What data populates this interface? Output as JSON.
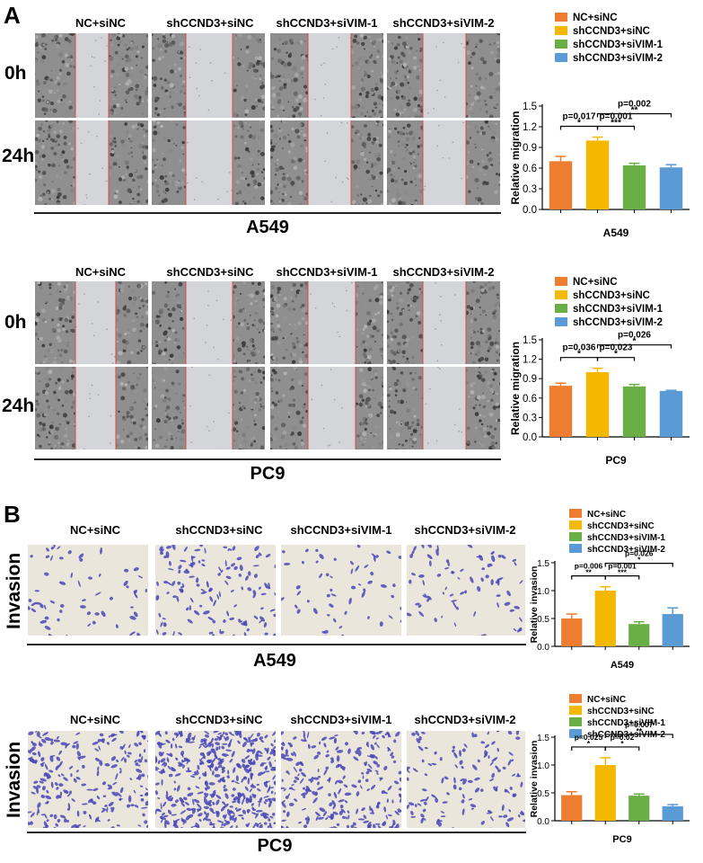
{
  "figure": {
    "panel_a_letter": "A",
    "panel_b_letter": "B",
    "wound_columns": [
      "NC+siNC",
      "shCCND3+siNC",
      "shCCND3+siVIM-1",
      "shCCND3+siVIM-2"
    ],
    "wound_rows": [
      "0h",
      "24h"
    ],
    "invasion_row_label": "Invasion",
    "cell_lines": [
      "A549",
      "PC9"
    ]
  },
  "colors": {
    "NC+siNC": "#ED7D31",
    "shCCND3+siNC": "#F5B800",
    "shCCND3+siVIM-1": "#6AAF45",
    "shCCND3+siVIM-2": "#5B9BD5",
    "wound_line": "#E0474C",
    "invasion_stain": "#4A47B8"
  },
  "chart_data": [
    {
      "type": "bar",
      "categories": [
        "NC+siNC",
        "shCCND3+siNC",
        "shCCND3+siVIM-1",
        "shCCND3+siVIM-2"
      ],
      "values": [
        0.7,
        1.0,
        0.64,
        0.61
      ],
      "errors": [
        0.07,
        0.05,
        0.03,
        0.04
      ],
      "ylabel": "Relative migration",
      "xlabel": "A549",
      "ylim": [
        0,
        1.5
      ],
      "yticks": [
        "0.0",
        "0.3",
        "0.6",
        "0.9",
        "1.2",
        "1.5"
      ],
      "legend": "top",
      "annotations": [
        {
          "from": 0,
          "to": 1,
          "p": "p=0.017",
          "stars": "*"
        },
        {
          "from": 1,
          "to": 2,
          "p": "p=0.001",
          "stars": "***"
        },
        {
          "from": 1,
          "to": 3,
          "p": "p=0.002",
          "stars": "**"
        }
      ]
    },
    {
      "type": "bar",
      "categories": [
        "NC+siNC",
        "shCCND3+siNC",
        "shCCND3+siVIM-1",
        "shCCND3+siVIM-2"
      ],
      "values": [
        0.79,
        1.0,
        0.78,
        0.71
      ],
      "errors": [
        0.04,
        0.06,
        0.03,
        0.01
      ],
      "ylabel": "Relative migration",
      "xlabel": "PC9",
      "ylim": [
        0,
        1.5
      ],
      "yticks": [
        "0.0",
        "0.3",
        "0.6",
        "0.9",
        "1.2",
        "1.5"
      ],
      "legend": "top",
      "annotations": [
        {
          "from": 0,
          "to": 1,
          "p": "p=0.036",
          "stars": "*"
        },
        {
          "from": 1,
          "to": 2,
          "p": "p=0.023",
          "stars": "*"
        },
        {
          "from": 1,
          "to": 3,
          "p": "p=0.026",
          "stars": "*"
        }
      ]
    },
    {
      "type": "bar",
      "categories": [
        "NC+siNC",
        "shCCND3+siNC",
        "shCCND3+siVIM-1",
        "shCCND3+siVIM-2"
      ],
      "values": [
        0.5,
        1.0,
        0.4,
        0.58
      ],
      "errors": [
        0.08,
        0.07,
        0.04,
        0.11
      ],
      "ylabel": "Relative invasion",
      "xlabel": "A549",
      "ylim": [
        0,
        1.5
      ],
      "yticks": [
        "0.0",
        "0.5",
        "1.0",
        "1.5"
      ],
      "legend": "top",
      "annotations": [
        {
          "from": 0,
          "to": 1,
          "p": "p=0.006",
          "stars": "**"
        },
        {
          "from": 1,
          "to": 2,
          "p": "p=0.001",
          "stars": "***"
        },
        {
          "from": 1,
          "to": 3,
          "p": "p=0.026",
          "stars": "*"
        }
      ]
    },
    {
      "type": "bar",
      "categories": [
        "NC+siNC",
        "shCCND3+siNC",
        "shCCND3+siVIM-1",
        "shCCND3+siVIM-2"
      ],
      "values": [
        0.46,
        1.0,
        0.45,
        0.26
      ],
      "errors": [
        0.06,
        0.13,
        0.03,
        0.03
      ],
      "ylabel": "Relative invasion",
      "xlabel": "PC9",
      "ylim": [
        0,
        1.5
      ],
      "yticks": [
        "0.0",
        "0.5",
        "1.0",
        "1.5"
      ],
      "legend": "top",
      "annotations": [
        {
          "from": 0,
          "to": 1,
          "p": "p=0.025",
          "stars": "*"
        },
        {
          "from": 1,
          "to": 2,
          "p": "p=0.02",
          "stars": "*"
        },
        {
          "from": 1,
          "to": 3,
          "p": "p=0.007",
          "stars": "**"
        }
      ]
    }
  ]
}
